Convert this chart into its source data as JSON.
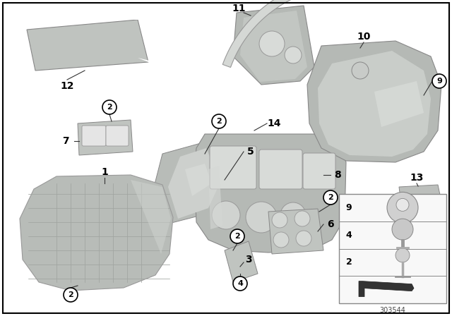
{
  "background_color": "#ffffff",
  "border_color": "#000000",
  "part_number": "303544",
  "fig_width": 6.4,
  "fig_height": 4.48,
  "dpi": 100,
  "part_color_light": "#c8ccc8",
  "part_color_mid": "#b0b4b0",
  "part_color_dark": "#909490",
  "part_color_highlight": "#dde0dd",
  "text_color": "#000000",
  "circle_color": "#000000",
  "circle_fill": "#ffffff"
}
